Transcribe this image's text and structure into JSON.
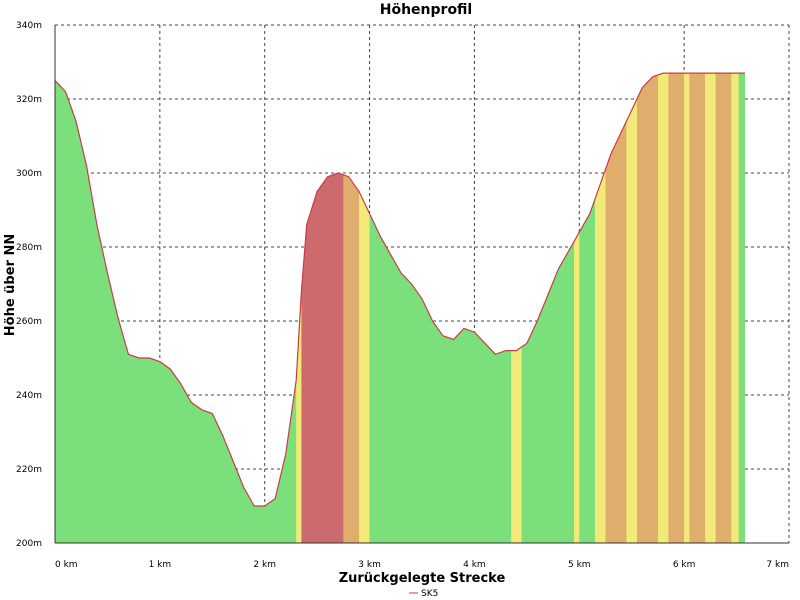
{
  "chart_data": {
    "type": "area",
    "title": "Höhenprofil",
    "xlabel": "Zurückgelegte Strecke",
    "ylabel": "Höhe über NN",
    "xlim": [
      0,
      7
    ],
    "ylim": [
      200,
      340
    ],
    "x_ticks": [
      "0 km",
      "1 km",
      "2 km",
      "3 km",
      "4 km",
      "5 km",
      "6 km",
      "7 km"
    ],
    "y_ticks": [
      "200m",
      "220m",
      "240m",
      "260m",
      "280m",
      "300m",
      "320m",
      "340m"
    ],
    "grid": true,
    "legend_position": "bottom",
    "series": [
      {
        "name": "SK5",
        "line_color": "#c83c46",
        "x_km": [
          0.0,
          0.1,
          0.2,
          0.3,
          0.4,
          0.5,
          0.6,
          0.7,
          0.8,
          0.9,
          1.0,
          1.1,
          1.2,
          1.3,
          1.4,
          1.5,
          1.6,
          1.7,
          1.8,
          1.9,
          2.0,
          2.1,
          2.2,
          2.3,
          2.35,
          2.4,
          2.5,
          2.6,
          2.7,
          2.8,
          2.9,
          3.0,
          3.1,
          3.2,
          3.3,
          3.4,
          3.5,
          3.6,
          3.7,
          3.8,
          3.9,
          4.0,
          4.1,
          4.2,
          4.3,
          4.4,
          4.5,
          4.6,
          4.7,
          4.8,
          4.9,
          5.0,
          5.1,
          5.2,
          5.3,
          5.4,
          5.5,
          5.6,
          5.7,
          5.8,
          5.9,
          6.0,
          6.1,
          6.2,
          6.3,
          6.4,
          6.5,
          6.58
        ],
        "elevation_m": [
          325,
          322,
          314,
          302,
          286,
          273,
          261,
          251,
          250,
          250,
          249,
          247,
          243,
          238,
          236,
          235,
          229,
          222,
          215,
          210,
          210,
          212,
          224,
          244,
          268,
          286,
          295,
          299,
          300,
          299,
          295,
          289,
          283,
          278,
          273,
          270,
          266,
          260,
          256,
          255,
          258,
          257,
          254,
          251,
          252,
          252,
          254,
          260,
          267,
          274,
          279,
          284,
          289,
          297,
          305,
          311,
          317,
          323,
          326,
          327,
          327,
          327,
          327,
          327,
          327,
          327,
          327,
          327
        ]
      }
    ],
    "fill_colors": {
      "green": "#7be07b",
      "yellow": "#f2ea78",
      "orange": "#dfae6c",
      "red": "#cc6a6e"
    },
    "fill_bands_km": [
      [
        0.0,
        2.3,
        "green"
      ],
      [
        2.3,
        2.35,
        "yellow"
      ],
      [
        2.35,
        2.75,
        "red"
      ],
      [
        2.75,
        2.9,
        "orange"
      ],
      [
        2.9,
        3.0,
        "yellow"
      ],
      [
        3.0,
        4.35,
        "green"
      ],
      [
        4.35,
        4.45,
        "yellow"
      ],
      [
        4.45,
        4.95,
        "green"
      ],
      [
        4.95,
        5.0,
        "yellow"
      ],
      [
        5.0,
        5.15,
        "green"
      ],
      [
        5.15,
        5.25,
        "yellow"
      ],
      [
        5.25,
        5.45,
        "orange"
      ],
      [
        5.45,
        5.55,
        "yellow"
      ],
      [
        5.55,
        5.75,
        "orange"
      ],
      [
        5.75,
        5.85,
        "yellow"
      ],
      [
        5.85,
        6.0,
        "orange"
      ],
      [
        6.0,
        6.05,
        "yellow"
      ],
      [
        6.05,
        6.2,
        "orange"
      ],
      [
        6.2,
        6.3,
        "yellow"
      ],
      [
        6.3,
        6.45,
        "orange"
      ],
      [
        6.45,
        6.52,
        "yellow"
      ],
      [
        6.52,
        6.58,
        "green"
      ]
    ]
  }
}
